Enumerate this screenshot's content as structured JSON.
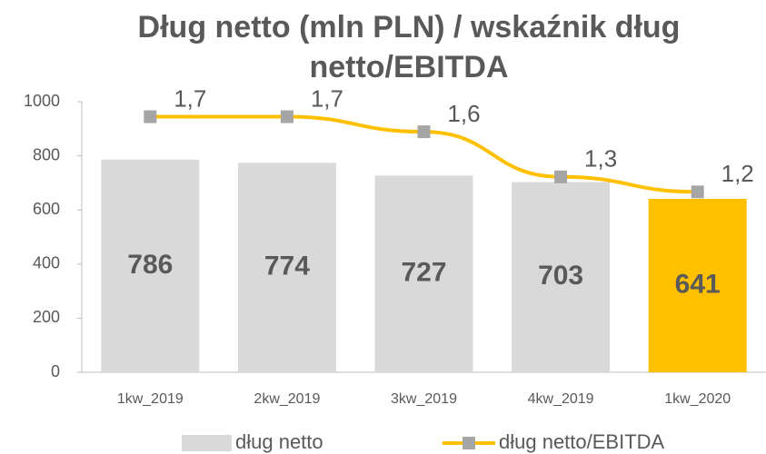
{
  "chart_data": {
    "type": "bar",
    "title": "Dług netto (mln PLN) / wskaźnik dług netto/EBITDA",
    "categories": [
      "1kw_2019",
      "2kw_2019",
      "3kw_2019",
      "4kw_2019",
      "1kw_2020"
    ],
    "ylim": [
      0,
      1000
    ],
    "yticks": [
      0,
      200,
      400,
      600,
      800,
      1000
    ],
    "y2lim": [
      0,
      1.8
    ],
    "legend": "bottom",
    "series": [
      {
        "name": "dług netto",
        "type": "bar",
        "color": "#d9d9d9",
        "colors": [
          "#d9d9d9",
          "#d9d9d9",
          "#d9d9d9",
          "#d9d9d9",
          "#ffc000"
        ],
        "values": [
          786,
          774,
          727,
          703,
          641
        ]
      },
      {
        "name": "dług netto/EBITDA",
        "type": "line",
        "axis": "y2",
        "color": "#ffc000",
        "marker_color": "#a5a5a5",
        "values": [
          1.7,
          1.7,
          1.6,
          1.3,
          1.2
        ],
        "value_labels": [
          "1,7",
          "1,7",
          "1,6",
          "1,3",
          "1,2"
        ]
      }
    ]
  }
}
